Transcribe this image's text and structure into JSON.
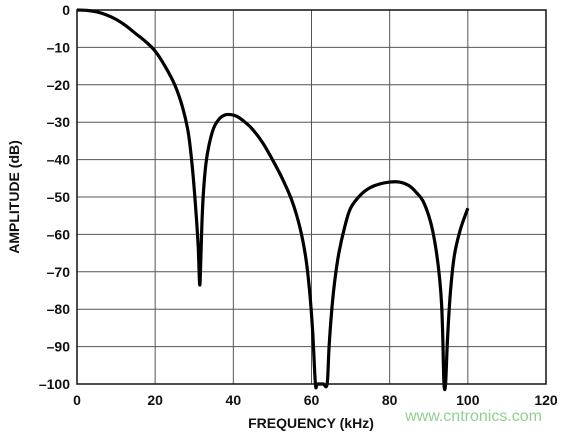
{
  "chart_data": {
    "type": "line",
    "title": "",
    "xlabel": "FREQUENCY (kHz)",
    "ylabel": "AMPLITUDE (dB)",
    "xlim": [
      0,
      120
    ],
    "ylim": [
      -100,
      0
    ],
    "x_ticks": [
      "0",
      "20",
      "40",
      "60",
      "80",
      "100",
      "120"
    ],
    "y_ticks": [
      "0",
      "–10",
      "–20",
      "–30",
      "–40",
      "–50",
      "–60",
      "–70",
      "–80",
      "–90",
      "–100"
    ],
    "grid": true,
    "legend": "none",
    "line_color": "#000000",
    "grid_color": "#555555",
    "series": [
      {
        "x": [
          0,
          2.5,
          5,
          7.5,
          10,
          12.5,
          15,
          17.5,
          20,
          22.5,
          25,
          27,
          28.5,
          29.5,
          30.3,
          31,
          31.4,
          31.7,
          32,
          32.4,
          33,
          33.8,
          35,
          36.5,
          38,
          39.5,
          41,
          43,
          45,
          47.5,
          50,
          52.5,
          55,
          57,
          58.5,
          59.5,
          60.3,
          61,
          61.5,
          63,
          64,
          64.5,
          65.2,
          66,
          67,
          68.5,
          70,
          72.5,
          75,
          77.5,
          80,
          82.5,
          85,
          87,
          88.5,
          90,
          91,
          92,
          92.8,
          93.3,
          93.6,
          93.9,
          94.3,
          94.8,
          95.5,
          96.5,
          98,
          100
        ],
        "y": [
          0,
          -0.1,
          -0.5,
          -1.3,
          -2.5,
          -4.2,
          -6.3,
          -8.4,
          -11,
          -15,
          -20,
          -26,
          -33,
          -42,
          -52,
          -63,
          -73.5,
          -66,
          -56,
          -48,
          -41,
          -36,
          -31.5,
          -29,
          -28,
          -28,
          -28.5,
          -30,
          -32,
          -35.5,
          -40,
          -45,
          -51,
          -58,
          -66,
          -75,
          -86,
          -100,
          -100,
          -100,
          -100,
          -90,
          -80,
          -72,
          -65,
          -58,
          -53,
          -49.5,
          -47.5,
          -46.5,
          -46,
          -46,
          -47,
          -49,
          -51,
          -55,
          -59,
          -65,
          -72,
          -79,
          -88,
          -100,
          -100,
          -88,
          -76,
          -66,
          -59,
          -53
        ]
      }
    ]
  },
  "watermark": "www.cntronics.com"
}
